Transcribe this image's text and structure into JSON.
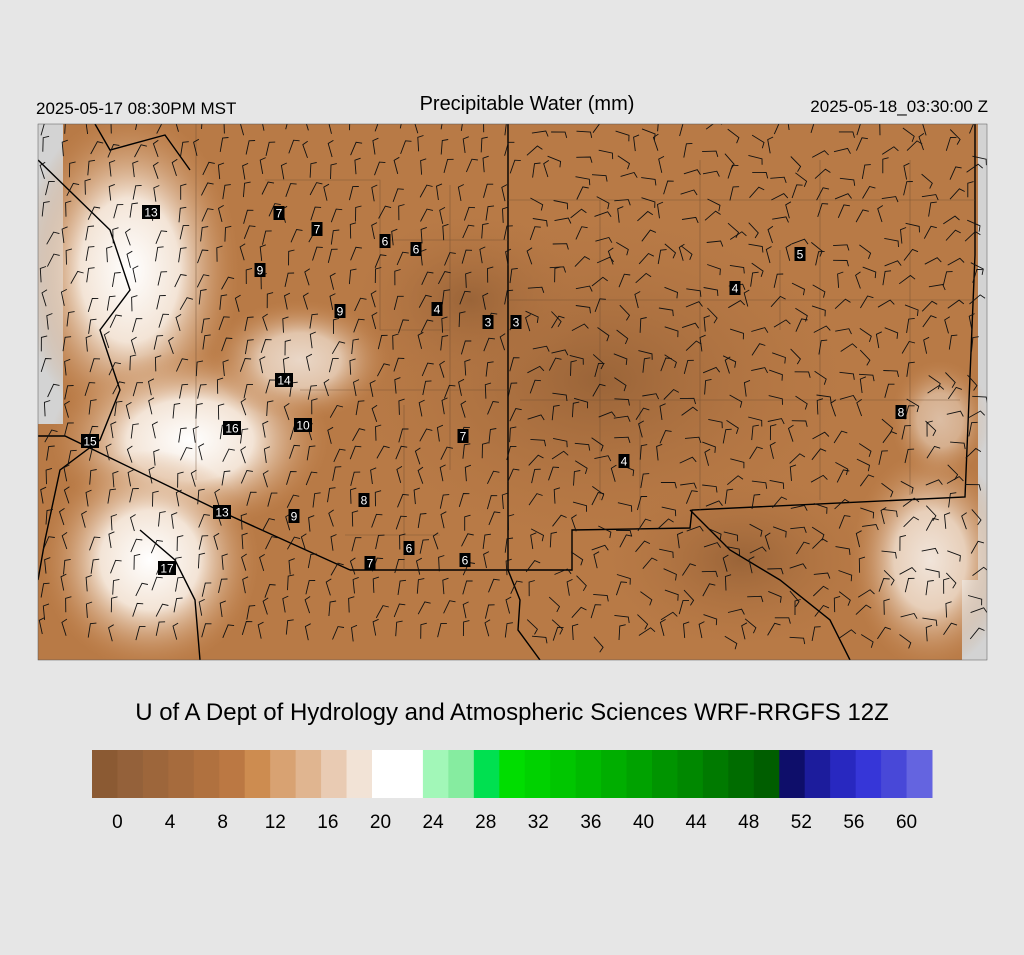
{
  "header": {
    "local_time": "2025-05-17 08:30PM MST",
    "title": "Precipitable Water (mm)",
    "valid_time": "2025-05-18_03:30:00 Z"
  },
  "stations": [
    13,
    7,
    7,
    6,
    6,
    9,
    5,
    9,
    4,
    3,
    3,
    4,
    14,
    16,
    10,
    7,
    15,
    8,
    4,
    13,
    9,
    8,
    6,
    6,
    7,
    17
  ],
  "credit": "U of A Dept of Hydrology and Atmospheric Sciences WRF-RRGFS 12Z",
  "colorbar": {
    "colors": [
      "#8b5a33",
      "#94613a",
      "#9d663b",
      "#a66b3d",
      "#b0713f",
      "#bb7843",
      "#cd8c50",
      "#d8a272",
      "#e0b590",
      "#e9cbb3",
      "#f2e3d6",
      "#ffffff",
      "#ffffff",
      "#a2f7b8",
      "#86eca0",
      "#00e050",
      "#00dd00",
      "#00d200",
      "#00c600",
      "#00ba00",
      "#00ae00",
      "#00a200",
      "#009400",
      "#008800",
      "#007a00",
      "#006c00",
      "#005e00",
      "#0e0e6a",
      "#1c1c9c",
      "#2828c0",
      "#3636d8",
      "#4848d8",
      "#6464e0"
    ],
    "ticks": [
      0,
      4,
      8,
      12,
      16,
      20,
      24,
      28,
      32,
      36,
      40,
      44,
      48,
      52,
      56,
      60
    ]
  }
}
